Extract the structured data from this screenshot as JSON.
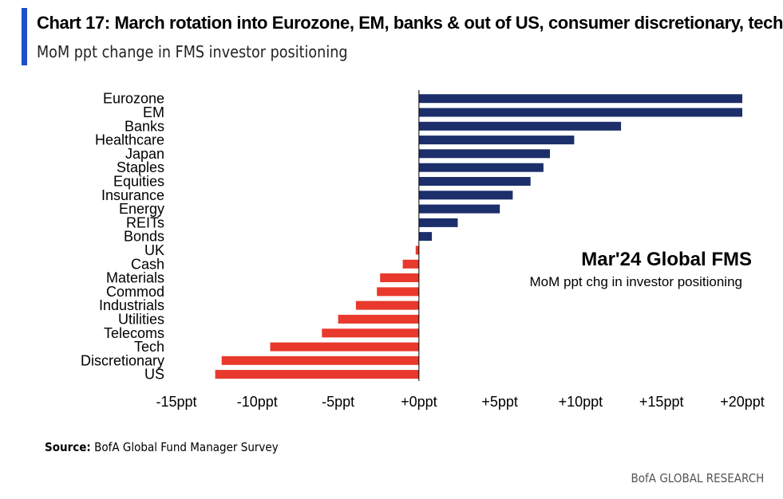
{
  "header": {
    "title": "Chart 17: March rotation into Eurozone, EM, banks & out of US, consumer discretionary, tech",
    "subtitle": "MoM ppt change in FMS investor positioning"
  },
  "annotation": {
    "heading": "Mar'24  Global FMS",
    "text": "MoM ppt chg in investor positioning"
  },
  "footer": {
    "source_label": "Source:",
    "source_text": "BofA Global Fund Manager Survey",
    "brand": "BofA GLOBAL RESEARCH"
  },
  "colors": {
    "positive": "#1c2f6b",
    "negative": "#e8392c",
    "accent": "#1f4fc8"
  },
  "chart_data": {
    "type": "bar",
    "orientation": "horizontal",
    "categories": [
      "Eurozone",
      "EM",
      "Banks",
      "Healthcare",
      "Japan",
      "Staples",
      "Equities",
      "Insurance",
      "Energy",
      "REITs",
      "Bonds",
      "UK",
      "Cash",
      "Materials",
      "Commod",
      "Industrials",
      "Utilities",
      "Telecoms",
      "Tech",
      "Discretionary",
      "US"
    ],
    "values": [
      20,
      20,
      12.5,
      9.6,
      8.1,
      7.7,
      6.9,
      5.8,
      5.0,
      2.4,
      0.8,
      -0.2,
      -1.0,
      -2.4,
      -2.6,
      -3.9,
      -5.0,
      -6.0,
      -9.2,
      -12.2,
      -12.6
    ],
    "xlim": [
      -15,
      20
    ],
    "xticks": [
      "-15ppt",
      "-10ppt",
      "-5ppt",
      "+0ppt",
      "+5ppt",
      "+10ppt",
      "+15ppt",
      "+20ppt"
    ],
    "xtick_values": [
      -15,
      -10,
      -5,
      0,
      5,
      10,
      15,
      20
    ],
    "grid": false
  }
}
